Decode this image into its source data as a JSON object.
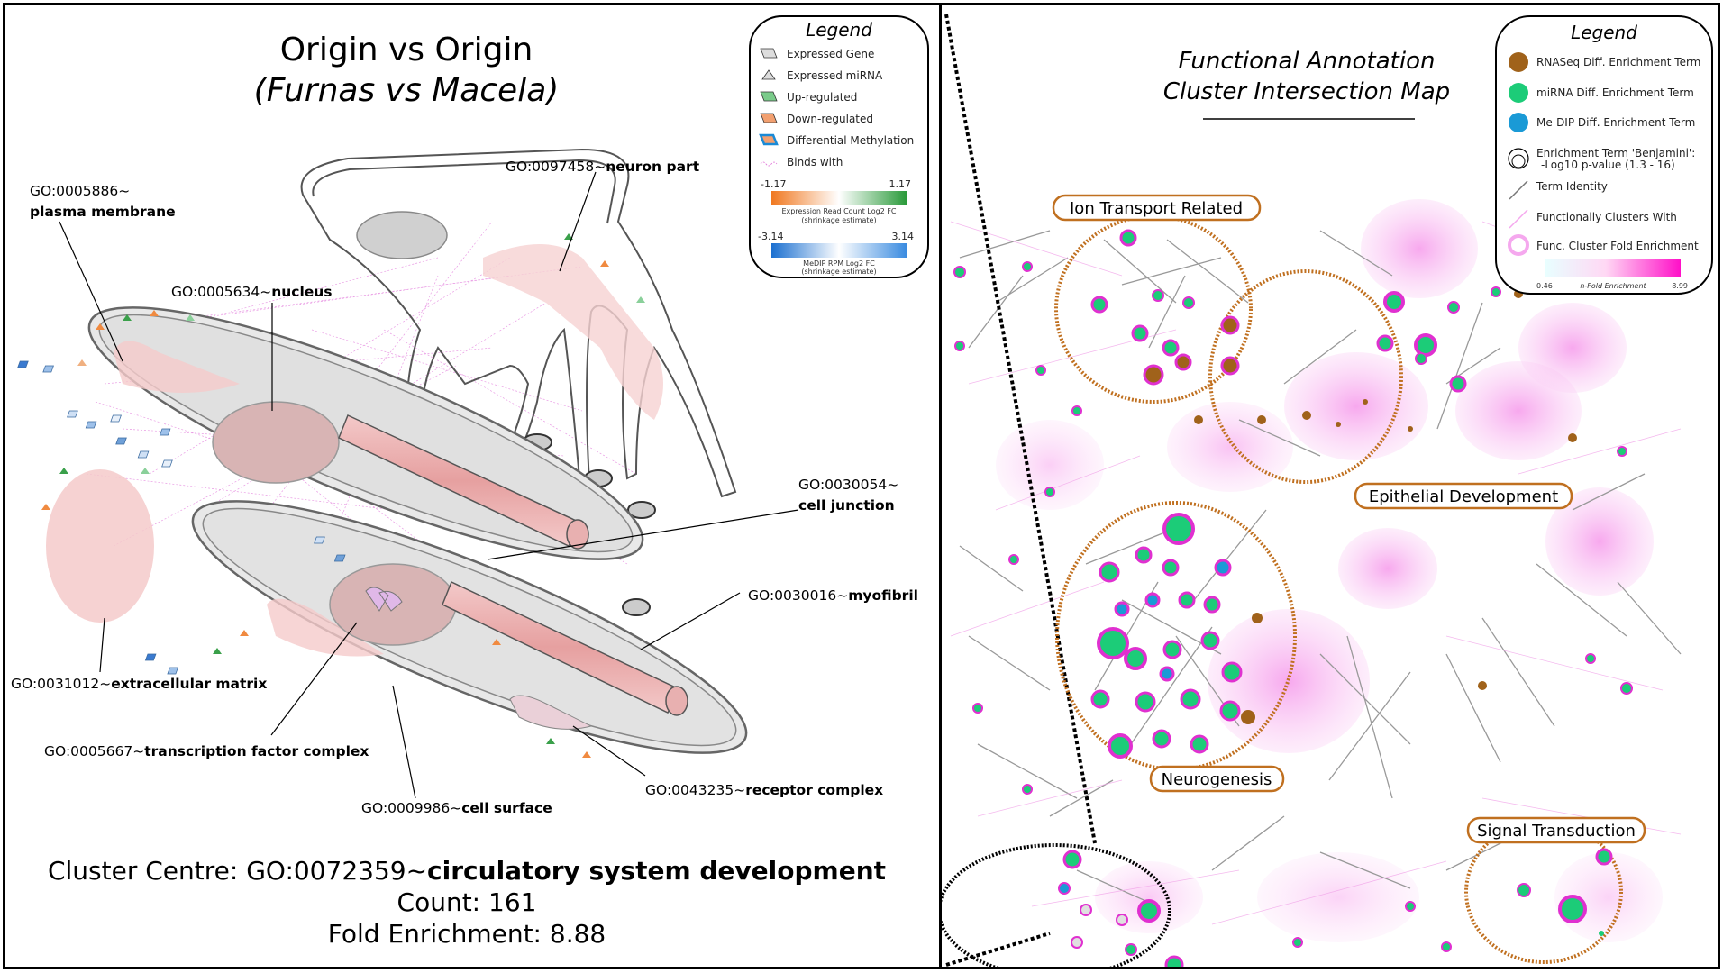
{
  "left": {
    "title_line1": "Origin vs Origin",
    "title_line2": "(Furnas vs Macela)",
    "go_labels": [
      {
        "id": "GO:0005886~",
        "name": "plasma membrane"
      },
      {
        "id": "GO:0005634~",
        "name": "nucleus"
      },
      {
        "id": "GO:0097458~",
        "name": "neuron part"
      },
      {
        "id": "GO:0030054~",
        "name": "cell junction"
      },
      {
        "id": "GO:0030016~",
        "name": "myofibril"
      },
      {
        "id": "GO:0031012~",
        "name": "extracellular matrix"
      },
      {
        "id": "GO:0005667~",
        "name": "transcription factor complex"
      },
      {
        "id": "GO:0009986~",
        "name": "cell surface"
      },
      {
        "id": "GO:0043235~",
        "name": "receptor complex"
      }
    ],
    "legend": {
      "heading": "Legend",
      "items": [
        "Expressed Gene",
        "Expressed miRNA",
        "Up-regulated",
        "Down-regulated",
        "Differential Methylation",
        "Binds with"
      ],
      "expr_scale": {
        "min": "-1.17",
        "max": "1.17",
        "caption1": "Expression Read Count Log2 FC",
        "caption2": "(shrinkage estimate)",
        "low_color": "#f07820",
        "high_color": "#2a9a3a"
      },
      "medip_scale": {
        "min": "-3.14",
        "max": "3.14",
        "caption1": "MeDIP RPM Log2 FC",
        "caption2": "(shrinkage estimate)",
        "low_color": "#1a6fd0",
        "high_color": "#3a8be0"
      }
    },
    "cluster_centre_prefix": "Cluster Centre: GO:0072359~",
    "cluster_centre_name": "circulatory system development",
    "count": "Count: 161",
    "fold": "Fold Enrichment: 8.88"
  },
  "right": {
    "title_line1": "Functional Annotation",
    "title_line2": "Cluster Intersection Map",
    "clusters": [
      "Ion Transport Related",
      "Epithelial Development",
      "Neurogenesis",
      "Signal Transduction"
    ],
    "legend": {
      "heading": "Legend",
      "items": [
        "RNASeq Diff. Enrichment Term",
        "miRNA Diff. Enrichment Term",
        "Me-DIP Diff. Enrichment Term",
        "Enrichment Term 'Benjamini':",
        "-Log10 p-value (1.3 - 16)",
        "Term Identity",
        "Functionally Clusters With",
        "Func. Cluster Fold Enrichment"
      ],
      "scale_min": "0.46",
      "scale_label": "n-Fold Enrichment",
      "scale_max": "8.99",
      "colors": {
        "rnaseq": "#a0621a",
        "mirna": "#1ccc78",
        "medip": "#1a9ad6",
        "fold_low": "#e8ffff",
        "fold_high": "#ff10c8"
      }
    }
  }
}
